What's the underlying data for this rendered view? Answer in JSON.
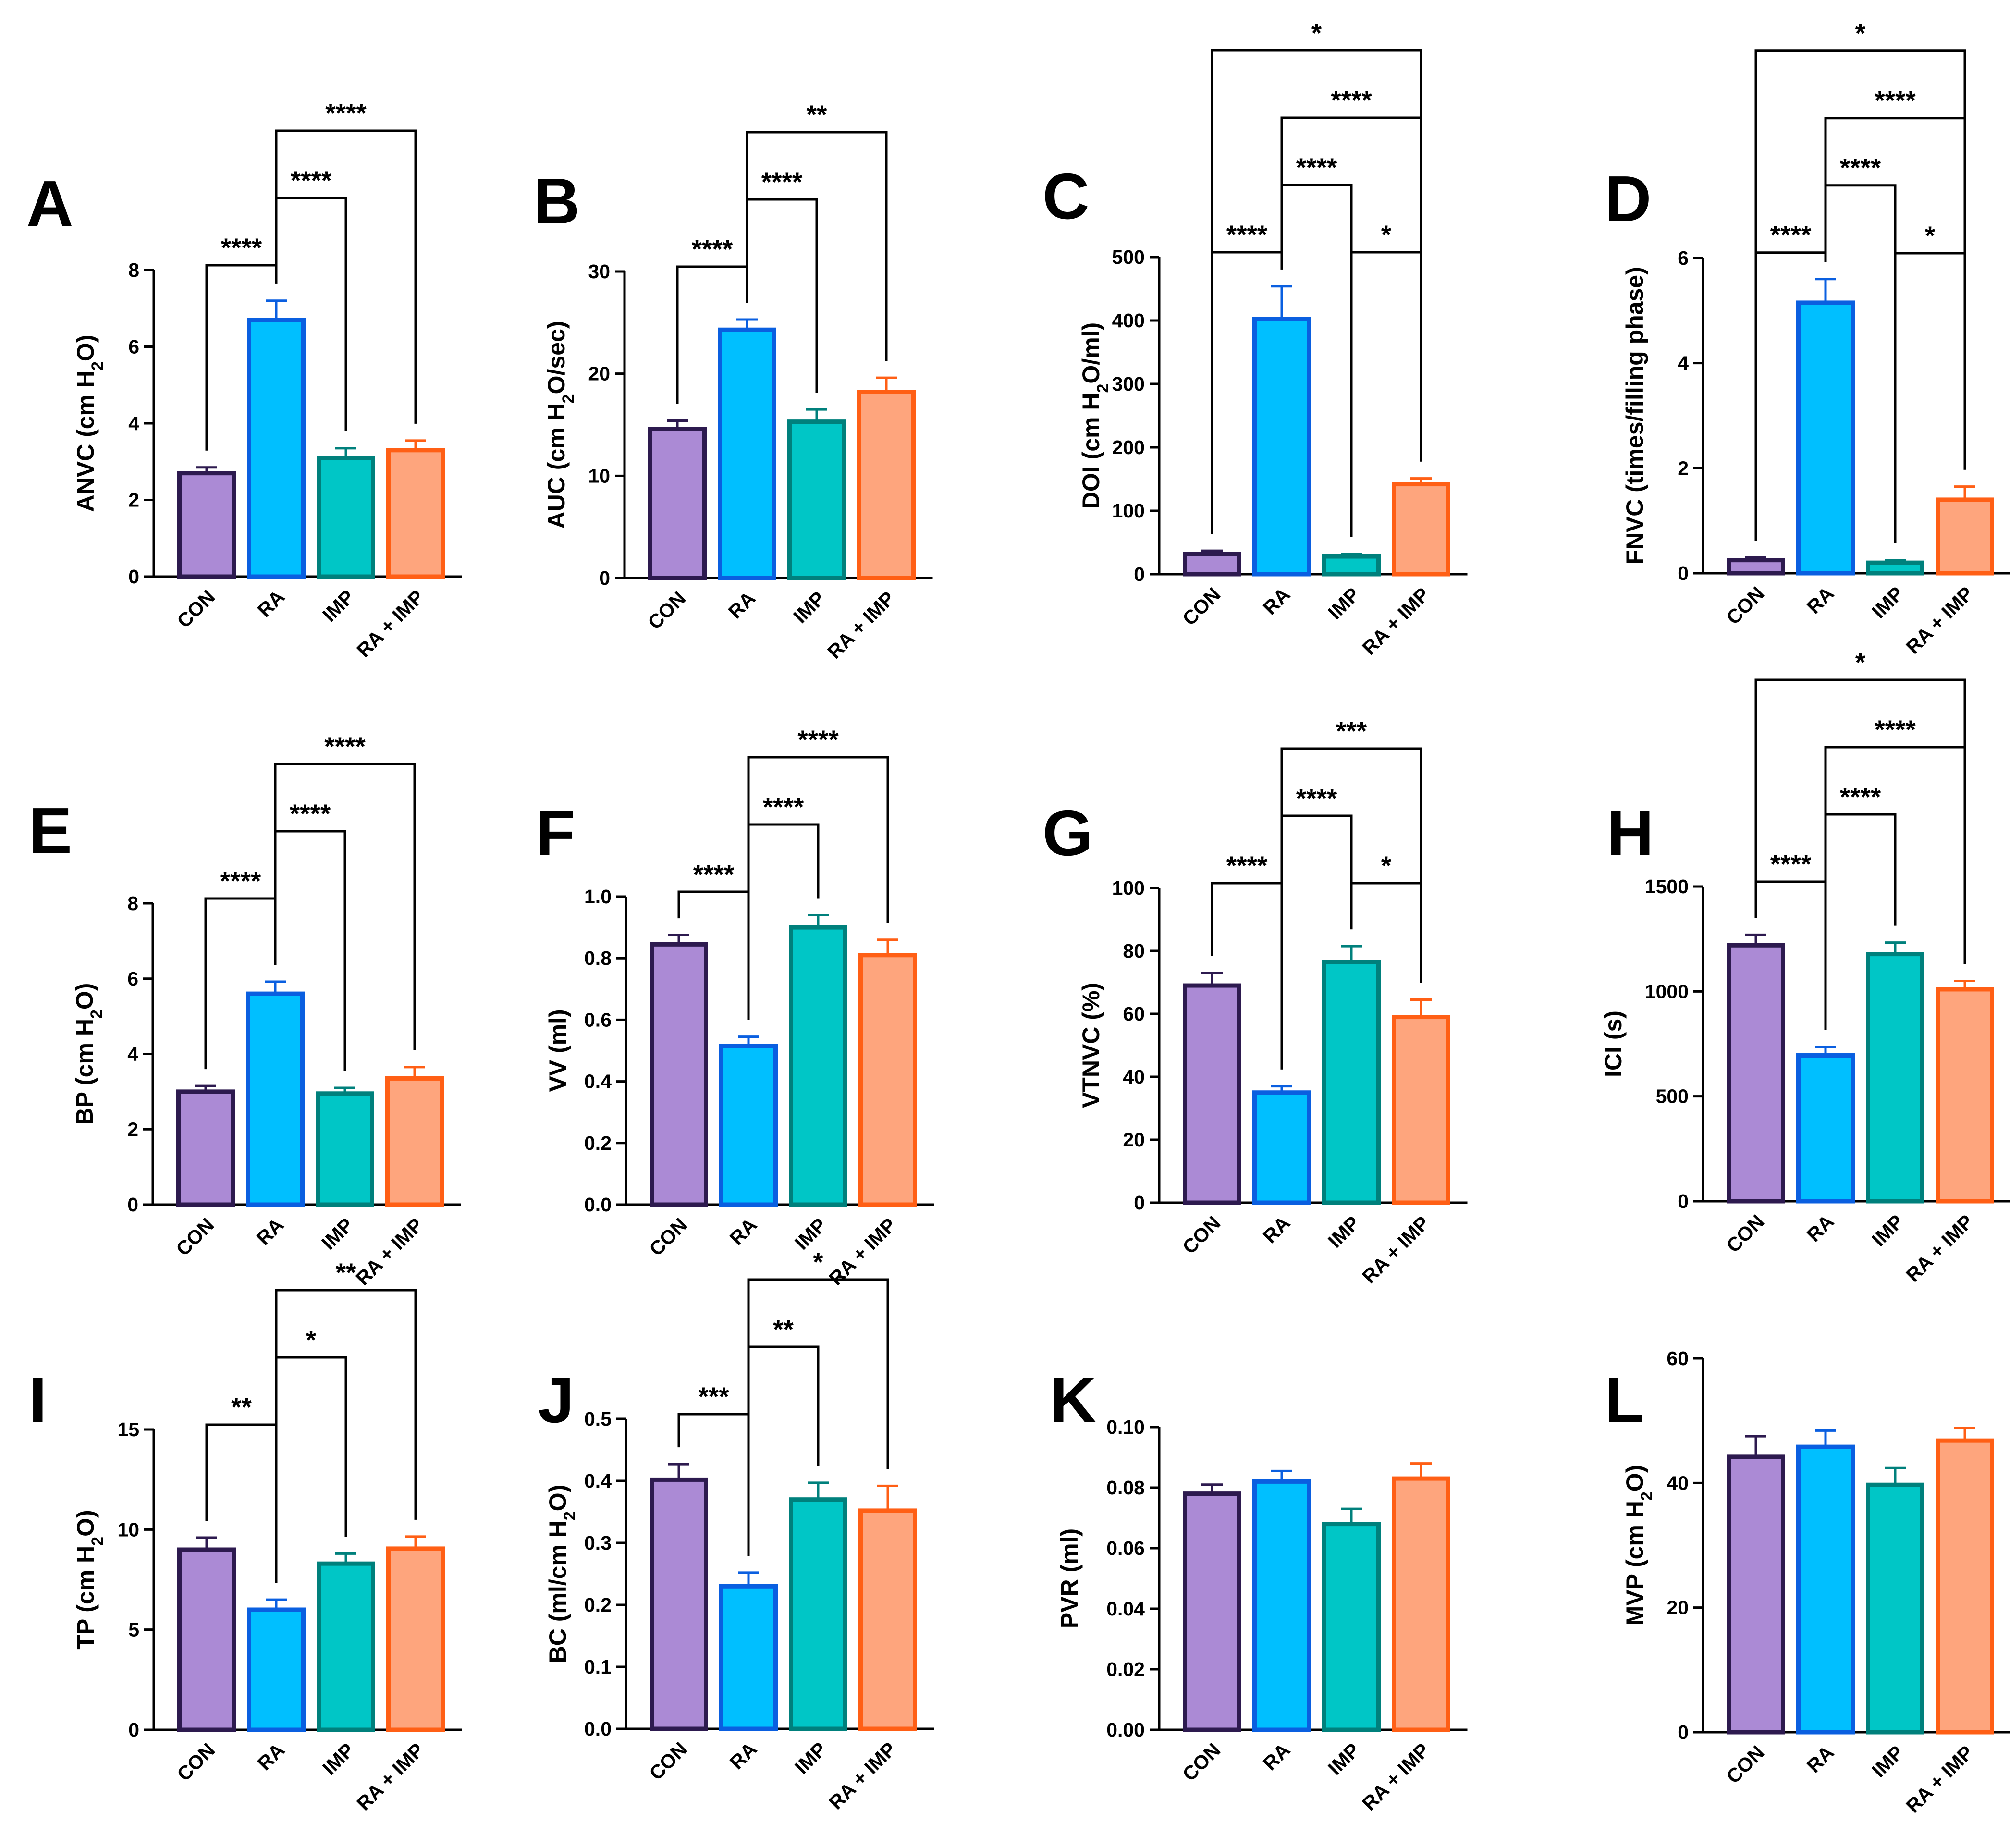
{
  "figure": {
    "categories": [
      "CON",
      "RA",
      "IMP",
      "RA + IMP"
    ],
    "colors": {
      "fill": [
        "#ab8ad5",
        "#00bfff",
        "#00c6c6",
        "#fea57d"
      ],
      "stroke": [
        "#2d1a4f",
        "#0a5fe0",
        "#00807c",
        "#ff5f15"
      ],
      "axis": "#000000"
    }
  },
  "chart_data": [
    {
      "panel": "A",
      "type": "bar",
      "ylabel": "ANVC (cm H$2$O)",
      "ylim": [
        0,
        8
      ],
      "ticks": [
        "0",
        "2",
        "4",
        "6",
        "8"
      ],
      "values": [
        2.7,
        6.7,
        3.1,
        3.3
      ],
      "errors": [
        0.15,
        0.5,
        0.25,
        0.25
      ],
      "annotations": [
        {
          "from": 0,
          "to": 1,
          "text": "****"
        },
        {
          "from": 1,
          "to": 2,
          "text": "****"
        },
        {
          "from": 1,
          "to": 3,
          "text": "****"
        }
      ]
    },
    {
      "panel": "B",
      "type": "bar",
      "ylabel": "AUC (cm H$2$O/sec)",
      "ylim": [
        0,
        30
      ],
      "ticks": [
        "0",
        "10",
        "20",
        "30"
      ],
      "values": [
        14.6,
        24.3,
        15.3,
        18.2
      ],
      "errors": [
        0.8,
        1.0,
        1.2,
        1.4
      ],
      "annotations": [
        {
          "from": 0,
          "to": 1,
          "text": "****"
        },
        {
          "from": 1,
          "to": 2,
          "text": "****"
        },
        {
          "from": 1,
          "to": 3,
          "text": "**"
        }
      ]
    },
    {
      "panel": "C",
      "type": "bar",
      "ylabel": "DOI (cm H$2$O/ml)",
      "ylim": [
        0,
        500
      ],
      "ticks": [
        "0",
        "100",
        "200",
        "300",
        "400",
        "500"
      ],
      "values": [
        32,
        402,
        28,
        142
      ],
      "errors": [
        5,
        52,
        4,
        9
      ],
      "annotations": [
        {
          "from": 0,
          "to": 1,
          "text": "****"
        },
        {
          "from": 2,
          "to": 3,
          "text": "*"
        },
        {
          "from": 1,
          "to": 2,
          "text": "****"
        },
        {
          "from": 1,
          "to": 3,
          "text": "****"
        },
        {
          "from": 0,
          "to": 3,
          "text": "*"
        }
      ]
    },
    {
      "panel": "D",
      "type": "bar",
      "ylabel": "FNVC (times/filling phase)",
      "ylim": [
        0,
        6
      ],
      "ticks": [
        "0",
        "2",
        "4",
        "6"
      ],
      "values": [
        0.25,
        5.15,
        0.2,
        1.4
      ],
      "errors": [
        0.05,
        0.45,
        0.05,
        0.25
      ],
      "annotations": [
        {
          "from": 0,
          "to": 1,
          "text": "****"
        },
        {
          "from": 2,
          "to": 3,
          "text": "*"
        },
        {
          "from": 1,
          "to": 2,
          "text": "****"
        },
        {
          "from": 1,
          "to": 3,
          "text": "****"
        },
        {
          "from": 0,
          "to": 3,
          "text": "*"
        }
      ]
    },
    {
      "panel": "E",
      "type": "bar",
      "ylabel": "BP (cm H$2$O)",
      "ylim": [
        0,
        8
      ],
      "ticks": [
        "0",
        "2",
        "4",
        "6",
        "8"
      ],
      "values": [
        3.0,
        5.6,
        2.95,
        3.35
      ],
      "errors": [
        0.15,
        0.32,
        0.15,
        0.3
      ],
      "annotations": [
        {
          "from": 0,
          "to": 1,
          "text": "****"
        },
        {
          "from": 1,
          "to": 2,
          "text": "****"
        },
        {
          "from": 1,
          "to": 3,
          "text": "****"
        }
      ]
    },
    {
      "panel": "F",
      "type": "bar",
      "ylabel": "VV (ml)",
      "ylim": [
        0,
        1.0
      ],
      "ticks": [
        "0.0",
        "0.2",
        "0.4",
        "0.6",
        "0.8",
        "1.0"
      ],
      "values": [
        0.845,
        0.515,
        0.9,
        0.81
      ],
      "errors": [
        0.03,
        0.03,
        0.04,
        0.05
      ],
      "annotations": [
        {
          "from": 0,
          "to": 1,
          "text": "****"
        },
        {
          "from": 1,
          "to": 2,
          "text": "****"
        },
        {
          "from": 1,
          "to": 3,
          "text": "****"
        }
      ]
    },
    {
      "panel": "G",
      "type": "bar",
      "ylabel": "VTNVC (%)",
      "ylim": [
        0,
        100
      ],
      "ticks": [
        "0",
        "20",
        "40",
        "60",
        "80",
        "100"
      ],
      "values": [
        69,
        35,
        76.5,
        59
      ],
      "errors": [
        4,
        2,
        5,
        5.5
      ],
      "annotations": [
        {
          "from": 0,
          "to": 1,
          "text": "****"
        },
        {
          "from": 2,
          "to": 3,
          "text": "*"
        },
        {
          "from": 1,
          "to": 2,
          "text": "****"
        },
        {
          "from": 1,
          "to": 3,
          "text": "***"
        }
      ]
    },
    {
      "panel": "H",
      "type": "bar",
      "ylabel": "ICI (s)",
      "ylim": [
        0,
        1500
      ],
      "ticks": [
        "0",
        "500",
        "1000",
        "1500"
      ],
      "values": [
        1220,
        695,
        1178,
        1010
      ],
      "errors": [
        50,
        40,
        55,
        40
      ],
      "annotations": [
        {
          "from": 0,
          "to": 1,
          "text": "****"
        },
        {
          "from": 1,
          "to": 2,
          "text": "****"
        },
        {
          "from": 1,
          "to": 3,
          "text": "****"
        },
        {
          "from": 0,
          "to": 3,
          "text": "*"
        }
      ]
    },
    {
      "panel": "I",
      "type": "bar",
      "ylabel": "TP (cm H$2$O)",
      "ylim": [
        0,
        15
      ],
      "ticks": [
        "0",
        "5",
        "10",
        "15"
      ],
      "values": [
        9.0,
        6.0,
        8.3,
        9.05
      ],
      "errors": [
        0.6,
        0.5,
        0.5,
        0.6
      ],
      "annotations": [
        {
          "from": 0,
          "to": 1,
          "text": "**"
        },
        {
          "from": 1,
          "to": 2,
          "text": "*"
        },
        {
          "from": 1,
          "to": 3,
          "text": "**"
        }
      ]
    },
    {
      "panel": "J",
      "type": "bar",
      "ylabel": "BC (ml/cm H$2$O)",
      "ylim": [
        0,
        0.5
      ],
      "ticks": [
        "0.0",
        "0.1",
        "0.2",
        "0.3",
        "0.4",
        "0.5"
      ],
      "values": [
        0.402,
        0.23,
        0.37,
        0.352
      ],
      "errors": [
        0.025,
        0.022,
        0.027,
        0.04
      ],
      "annotations": [
        {
          "from": 0,
          "to": 1,
          "text": "***"
        },
        {
          "from": 1,
          "to": 2,
          "text": "**"
        },
        {
          "from": 1,
          "to": 3,
          "text": "*"
        }
      ]
    },
    {
      "panel": "K",
      "type": "bar",
      "ylabel": "PVR (ml)",
      "ylim": [
        0,
        0.1
      ],
      "ticks": [
        "0.00",
        "0.02",
        "0.04",
        "0.06",
        "0.08",
        "0.10"
      ],
      "values": [
        0.078,
        0.082,
        0.068,
        0.083
      ],
      "errors": [
        0.003,
        0.0035,
        0.005,
        0.005
      ],
      "annotations": []
    },
    {
      "panel": "L",
      "type": "bar",
      "ylabel": "MVP (cm H$2$O)",
      "ylim": [
        0,
        60
      ],
      "ticks": [
        "0",
        "20",
        "40",
        "60"
      ],
      "values": [
        44.2,
        45.8,
        39.7,
        46.8
      ],
      "errors": [
        3.3,
        2.6,
        2.7,
        2.0
      ],
      "annotations": []
    }
  ]
}
